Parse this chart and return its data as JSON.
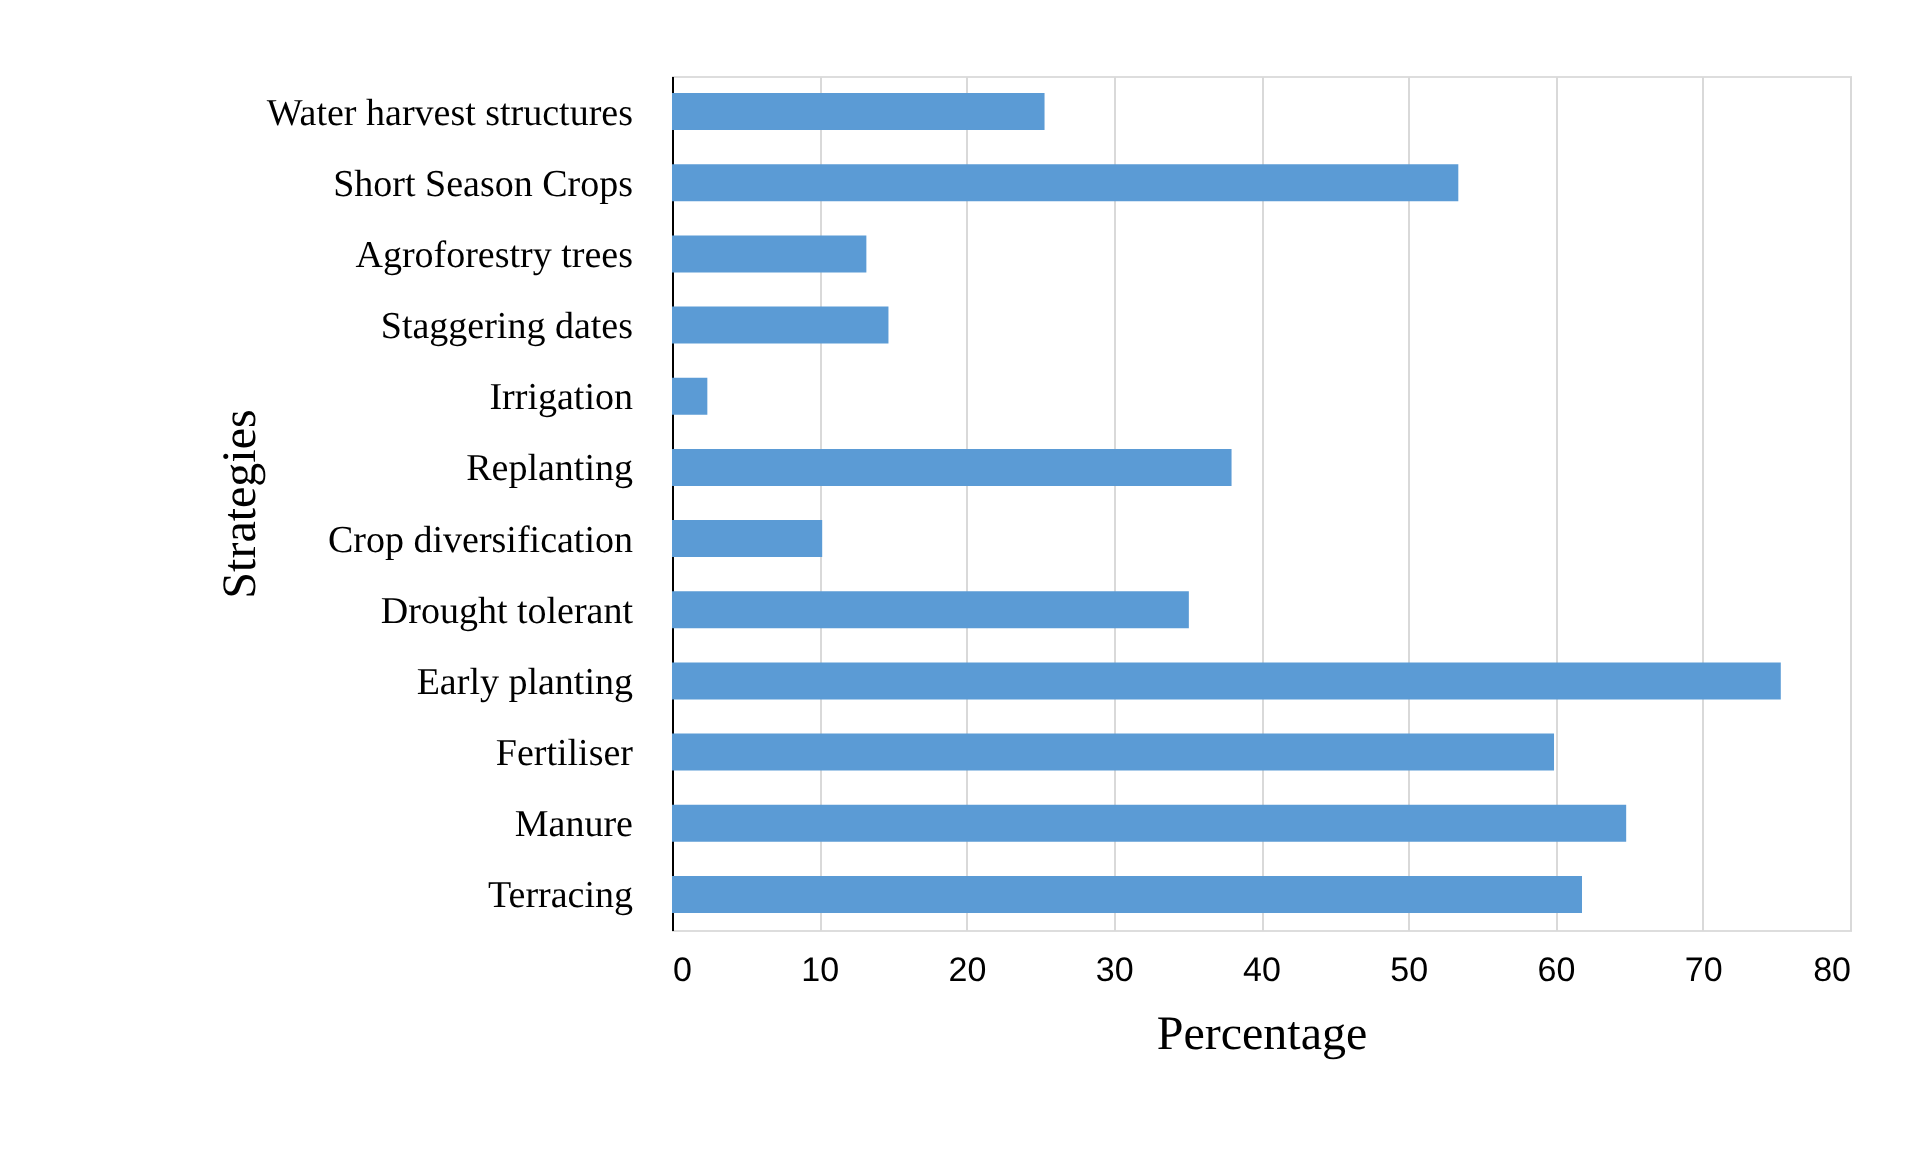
{
  "chart_data": {
    "type": "bar",
    "orientation": "horizontal",
    "xlabel": "Percentage",
    "ylabel": "Strategies",
    "categories": [
      "Water harvest structures",
      "Short Season Crops",
      "Agroforestry trees",
      "Staggering dates",
      "Irrigation",
      "Replanting",
      "Crop diversification",
      "Drought tolerant",
      "Early planting",
      "Fertiliser",
      "Manure",
      "Terracing"
    ],
    "values": [
      25.3,
      53.4,
      13.2,
      14.7,
      2.4,
      38.0,
      10.2,
      35.1,
      75.3,
      59.9,
      64.8,
      61.8
    ],
    "color": "#5b9bd5",
    "xlim": [
      0,
      80
    ],
    "xticks": [
      0,
      10,
      20,
      30,
      40,
      50,
      60,
      70,
      80
    ],
    "grid": "x"
  }
}
